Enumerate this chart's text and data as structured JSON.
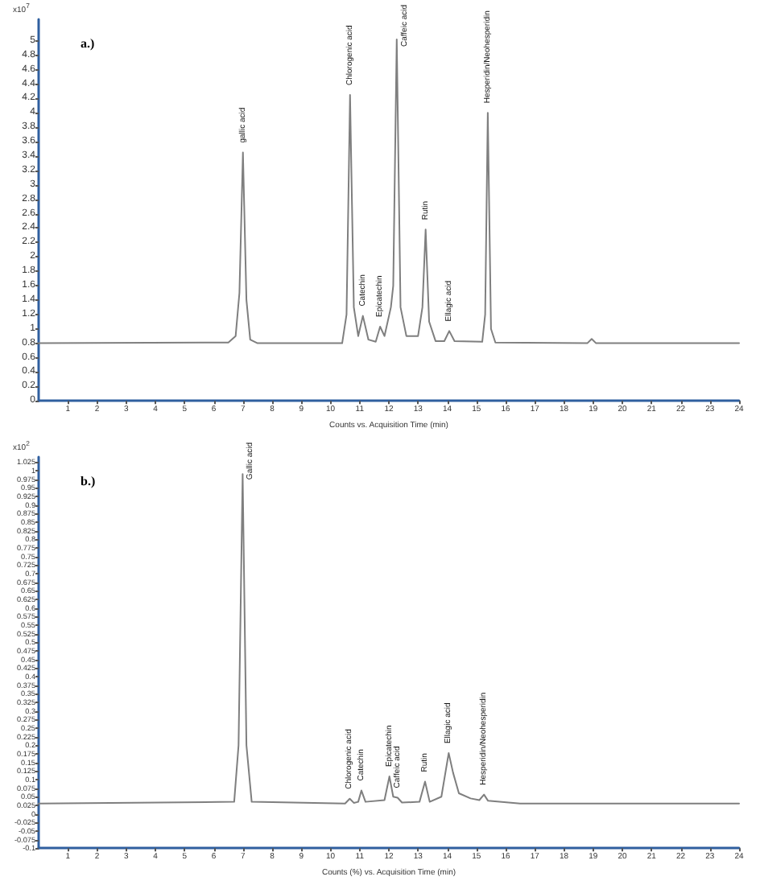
{
  "chart_data": [
    {
      "type": "line",
      "title": "a.)",
      "xlabel": "Counts vs. Acquisition Time (min)",
      "ylabel": "x10$^{7}$",
      "xlim": [
        0,
        24
      ],
      "xticks": [
        1,
        2,
        3,
        4,
        5,
        6,
        7,
        8,
        9,
        10,
        11,
        12,
        13,
        14,
        15,
        16,
        17,
        18,
        19,
        20,
        21,
        22,
        23,
        24
      ],
      "ylim": [
        0,
        5.3
      ],
      "yticks": [
        0,
        0.2,
        0.4,
        0.6,
        0.8,
        1,
        1.2,
        1.4,
        1.6,
        1.8,
        2,
        2.2,
        2.4,
        2.6,
        2.8,
        3,
        3.2,
        3.4,
        3.6,
        3.8,
        4,
        4.2,
        4.4,
        4.6,
        4.8,
        5
      ],
      "grid": false,
      "marker": "none",
      "line_style": "solid",
      "series": [
        {
          "color": "#7f7f7f",
          "x": [
            0,
            6.5,
            6.75,
            6.88,
            7.0,
            7.12,
            7.25,
            7.5,
            10.4,
            10.55,
            10.67,
            10.8,
            10.95,
            11.11,
            11.3,
            11.55,
            11.7,
            11.85,
            12.07,
            12.15,
            12.27,
            12.4,
            12.6,
            13.0,
            13.15,
            13.26,
            13.38,
            13.6,
            13.9,
            14.07,
            14.25,
            15.2,
            15.3,
            15.39,
            15.5,
            15.65,
            18.8,
            18.95,
            19.1,
            24
          ],
          "values": [
            0.8,
            0.81,
            0.9,
            1.5,
            3.45,
            1.4,
            0.85,
            0.8,
            0.8,
            1.2,
            4.25,
            1.3,
            0.9,
            1.18,
            0.85,
            0.82,
            1.03,
            0.9,
            1.3,
            1.6,
            5.02,
            1.3,
            0.9,
            0.9,
            1.3,
            2.38,
            1.1,
            0.83,
            0.83,
            0.97,
            0.83,
            0.82,
            1.2,
            4.0,
            1.0,
            0.81,
            0.8,
            0.86,
            0.8,
            0.8
          ]
        }
      ],
      "annotations": [
        {
          "text": "gallic acid",
          "x": 7.0,
          "y": 3.45
        },
        {
          "text": "Chlorogenic acid",
          "x": 10.67,
          "y": 4.25
        },
        {
          "text": "Catechin",
          "x": 11.11,
          "y": 1.18
        },
        {
          "text": "Epicatechin",
          "x": 11.7,
          "y": 1.03
        },
        {
          "text": "Caffeic acid",
          "x": 12.27,
          "y": 5.02
        },
        {
          "text": "Rutin",
          "x": 13.26,
          "y": 2.38
        },
        {
          "text": "Ellagic acid",
          "x": 14.07,
          "y": 0.97
        },
        {
          "text": "Hesperidin/Neohesperidin",
          "x": 15.39,
          "y": 4.0
        }
      ]
    },
    {
      "type": "line",
      "title": "b.)",
      "xlabel": "Counts (%) vs. Acquisition Time (min)",
      "ylabel": "x10$^{2}$",
      "xlim": [
        0,
        24
      ],
      "xticks": [
        1,
        2,
        3,
        4,
        5,
        6,
        7,
        8,
        9,
        10,
        11,
        12,
        13,
        14,
        15,
        16,
        17,
        18,
        19,
        20,
        21,
        22,
        23,
        24
      ],
      "ylim": [
        -0.1,
        1.04
      ],
      "yticks": [
        -0.1,
        -0.075,
        -0.05,
        -0.025,
        0,
        0.025,
        0.05,
        0.075,
        0.1,
        0.125,
        0.15,
        0.175,
        0.2,
        0.225,
        0.25,
        0.275,
        0.3,
        0.325,
        0.35,
        0.375,
        0.4,
        0.425,
        0.45,
        0.475,
        0.5,
        0.525,
        0.55,
        0.575,
        0.6,
        0.625,
        0.65,
        0.675,
        0.7,
        0.725,
        0.75,
        0.775,
        0.8,
        0.825,
        0.85,
        0.875,
        0.9,
        0.925,
        0.95,
        0.975,
        1,
        1.025
      ],
      "grid": false,
      "marker": "none",
      "line_style": "solid",
      "series": [
        {
          "color": "#7f7f7f",
          "x": [
            0,
            6.7,
            6.85,
            6.99,
            7.12,
            7.3,
            10.5,
            10.66,
            10.8,
            10.95,
            11.06,
            11.2,
            11.85,
            12.02,
            12.15,
            12.3,
            12.45,
            13.05,
            13.24,
            13.4,
            13.8,
            14.05,
            14.2,
            14.4,
            14.8,
            15.1,
            15.26,
            15.4,
            16.5,
            24
          ],
          "values": [
            0.03,
            0.035,
            0.2,
            0.99,
            0.2,
            0.035,
            0.03,
            0.044,
            0.032,
            0.035,
            0.068,
            0.035,
            0.04,
            0.109,
            0.05,
            0.047,
            0.033,
            0.035,
            0.094,
            0.035,
            0.05,
            0.177,
            0.12,
            0.06,
            0.045,
            0.04,
            0.056,
            0.038,
            0.03,
            0.03
          ]
        }
      ],
      "annotations": [
        {
          "text": "Gallic acid",
          "x": 6.99,
          "y": 0.99
        },
        {
          "text": "Chlorogenic acid",
          "x": 10.66,
          "y": 0.044
        },
        {
          "text": "Catechin",
          "x": 11.06,
          "y": 0.068
        },
        {
          "text": "Epicatechin",
          "x": 12.02,
          "y": 0.109
        },
        {
          "text": "Caffeic acid",
          "x": 12.3,
          "y": 0.047
        },
        {
          "text": "Rutin",
          "x": 13.24,
          "y": 0.094
        },
        {
          "text": "Ellagic acid",
          "x": 14.05,
          "y": 0.177
        },
        {
          "text": "Hesperidin/Neohesperidin",
          "x": 15.26,
          "y": 0.056
        }
      ]
    }
  ]
}
